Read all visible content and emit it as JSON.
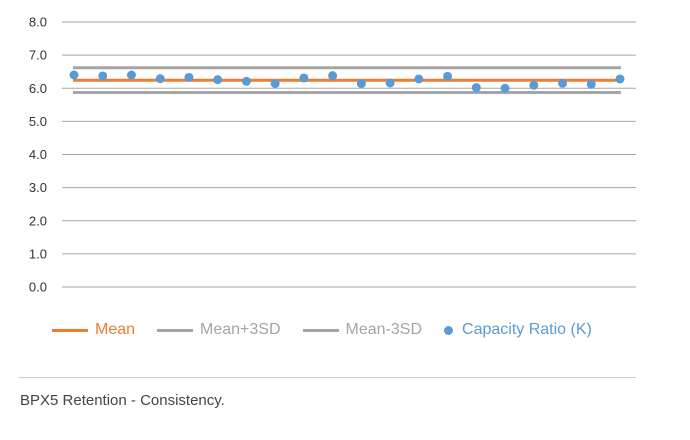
{
  "chart_data": {
    "type": "scatter",
    "title": "",
    "xlabel": "",
    "ylabel": "",
    "ylim": [
      0,
      8
    ],
    "yticks": [
      "0.0",
      "1.0",
      "2.0",
      "3.0",
      "4.0",
      "5.0",
      "6.0",
      "7.0",
      "8.0"
    ],
    "grid": true,
    "legend_position": "bottom",
    "n_points": 20,
    "series": [
      {
        "name": "Mean",
        "kind": "line",
        "color": "#ed7d31",
        "value": 6.24
      },
      {
        "name": "Mean+3SD",
        "kind": "line",
        "color": "#a5a5a5",
        "value": 6.62
      },
      {
        "name": "Mean-3SD",
        "kind": "line",
        "color": "#a5a5a5",
        "value": 5.87
      },
      {
        "name": "Capacity Ratio (K)",
        "kind": "scatter",
        "color": "#5b9bd5",
        "values": [
          6.4,
          6.37,
          6.4,
          6.29,
          6.33,
          6.26,
          6.21,
          6.14,
          6.31,
          6.38,
          6.14,
          6.16,
          6.28,
          6.36,
          6.02,
          6.0,
          6.09,
          6.15,
          6.12,
          6.28
        ]
      }
    ]
  },
  "caption": "BPX5 Retention - Consistency."
}
